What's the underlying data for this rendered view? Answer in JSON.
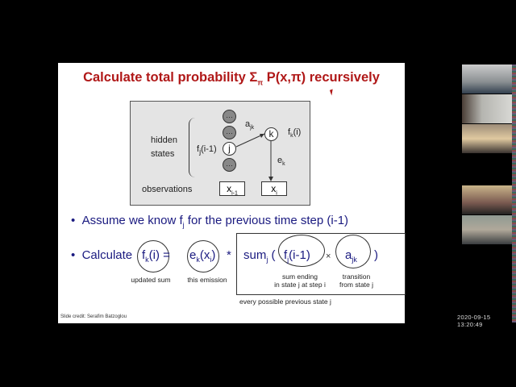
{
  "slide": {
    "title": "Calculate total probability Σπ P(x,π) recursively",
    "title_main": "Calculate total probability Σ",
    "title_sub": "π",
    "title_rest": " P(x,π) recursively",
    "diagram": {
      "hidden": "hidden",
      "states": "states",
      "observations": "observations",
      "dots": "…",
      "j": "j",
      "k": "k",
      "fj": "f",
      "fj_sub": "j",
      "fj_rest": "(i-1)",
      "fk": "f",
      "fk_sub": "k",
      "fk_rest": "(i)",
      "a": "a",
      "a_sub": "jk",
      "e": "e",
      "e_sub": "k",
      "x_prev": "x",
      "x_prev_sub": "i-1",
      "x_cur": "x",
      "x_cur_sub": "i"
    },
    "bullet1": {
      "text": "Assume we know f",
      "sub": "j",
      "rest": " for the previous time step (i-1)"
    },
    "bullet2": {
      "calc": "Calculate",
      "fk": "f",
      "fk_sub": "k",
      "fk_rest": "(i)",
      "eq": "=",
      "ek": "e",
      "ek_sub": "k",
      "ek_mid": "(x",
      "ek_sub2": "i",
      "ek_end": ")",
      "star": "*",
      "sum": "sum",
      "sum_sub": "j",
      "paren_open": "(",
      "fj": "f",
      "fj_sub": "j",
      "fj_rest": "(i-1)",
      "times": "×",
      "a": "a",
      "a_sub": "jk",
      "paren_close": ")"
    },
    "labels": {
      "updated": "updated sum",
      "emission": "this emission",
      "sum_ending_1": "sum ending",
      "sum_ending_2": "in state j at step i",
      "transition_1": "transition",
      "transition_2": "from state j",
      "every": "every possible previous state j"
    },
    "credit": "Slide credit: Serafim Batzoglou"
  },
  "timestamp": "2020-09-15  13:20:49",
  "participants": [
    {
      "tone": "#8a8f92"
    },
    {
      "tone": "#b5b5b0"
    },
    {
      "tone": "#9c8c78"
    },
    {
      "tone": "#c9b48a"
    },
    {
      "tone": "#8f9a92"
    }
  ]
}
